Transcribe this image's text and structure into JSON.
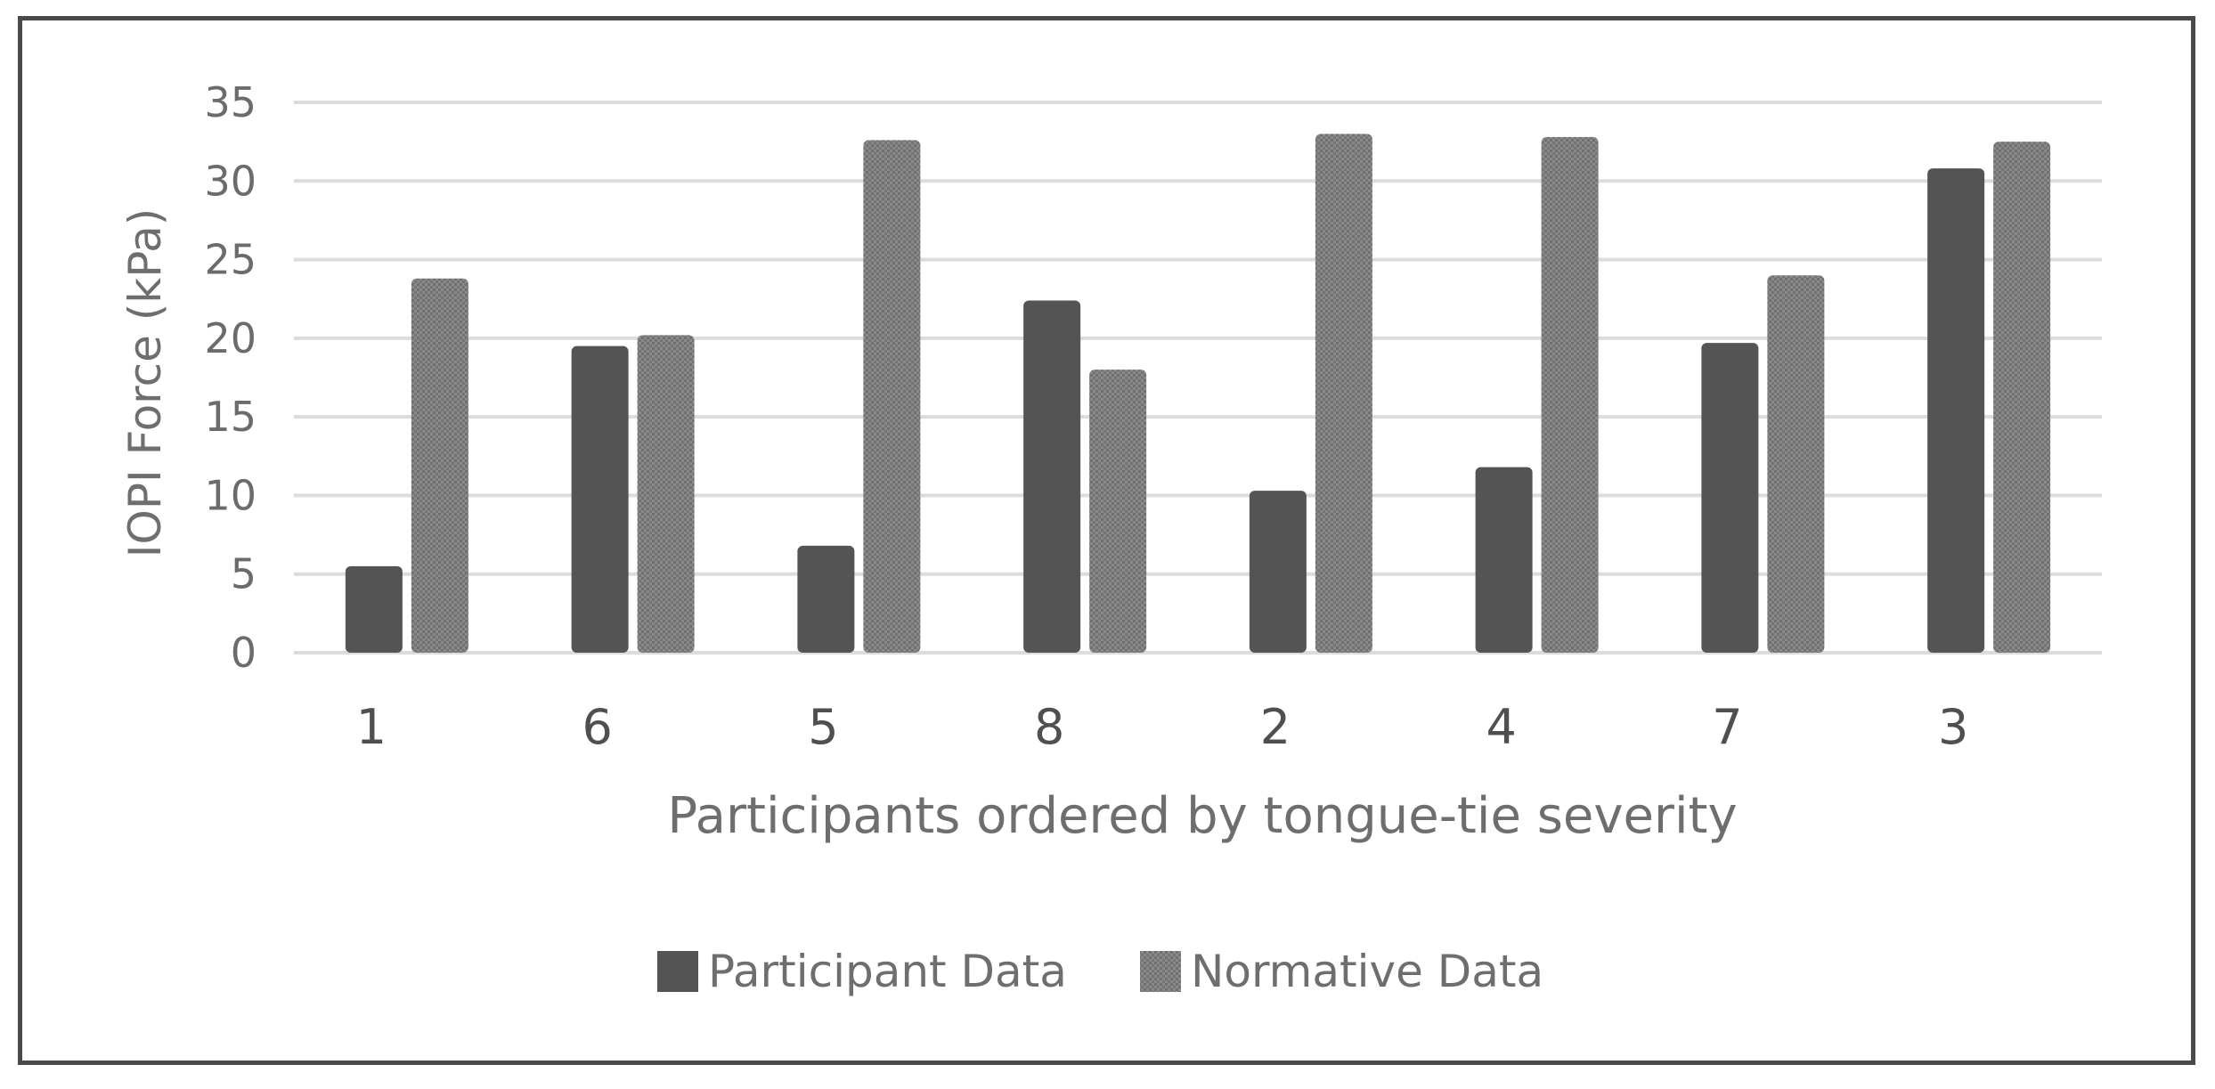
{
  "chart_data": {
    "type": "bar",
    "title": "",
    "xlabel": "Participants ordered by tongue-tie severity",
    "ylabel": "IOPI Force (kPa)",
    "ylim": [
      0,
      35
    ],
    "yticks": [
      "0",
      "5",
      "10",
      "15",
      "20",
      "25",
      "30",
      "35"
    ],
    "categories": [
      "1",
      "6",
      "5",
      "8",
      "2",
      "4",
      "7",
      "3"
    ],
    "series": [
      {
        "name": "Participant Data",
        "values": [
          5.5,
          19.5,
          6.8,
          22.4,
          10.3,
          11.8,
          19.7,
          30.8
        ],
        "color": "#555555"
      },
      {
        "name": "Normative Data",
        "values": [
          23.8,
          20.2,
          32.6,
          18.0,
          33.0,
          32.8,
          24.0,
          32.5
        ],
        "color": "#7f7f7f"
      }
    ],
    "grid": true,
    "legend_position": "bottom"
  }
}
